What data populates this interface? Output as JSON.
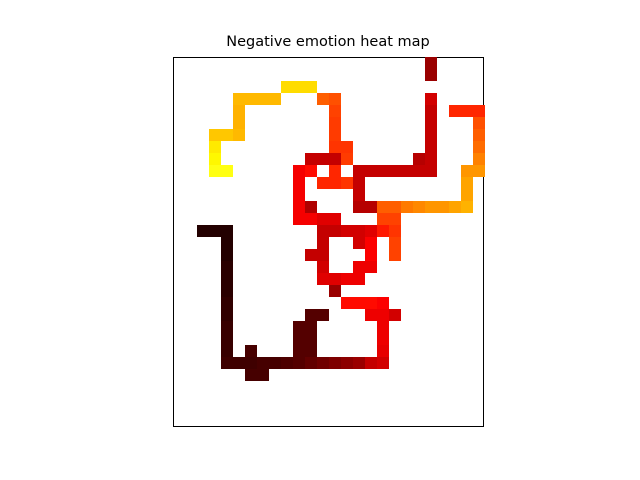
{
  "chart_data": {
    "type": "heatmap",
    "title": "Negative emotion heat map",
    "xlabel": "",
    "ylabel": "",
    "axes_ticks": "none",
    "grid": false,
    "background": "#ffffff",
    "colormap": "hot",
    "cells_note": "cells listed as [column, row, colormap value 0-1]; row 0 is top",
    "cells": [
      [
        20,
        0,
        0.22
      ],
      [
        20,
        1,
        0.22
      ],
      [
        8,
        2,
        0.68
      ],
      [
        9,
        2,
        0.68
      ],
      [
        10,
        2,
        0.68
      ],
      [
        4,
        3,
        0.63
      ],
      [
        5,
        3,
        0.63
      ],
      [
        6,
        3,
        0.63
      ],
      [
        7,
        3,
        0.63
      ],
      [
        11,
        3,
        0.5
      ],
      [
        12,
        3,
        0.48
      ],
      [
        20,
        3,
        0.3
      ],
      [
        4,
        4,
        0.62
      ],
      [
        12,
        4,
        0.46
      ],
      [
        20,
        4,
        0.28
      ],
      [
        22,
        4,
        0.42
      ],
      [
        23,
        4,
        0.42
      ],
      [
        24,
        4,
        0.42
      ],
      [
        4,
        5,
        0.62
      ],
      [
        12,
        5,
        0.45
      ],
      [
        20,
        5,
        0.28
      ],
      [
        24,
        5,
        0.48
      ],
      [
        2,
        6,
        0.65
      ],
      [
        3,
        6,
        0.65
      ],
      [
        4,
        6,
        0.63
      ],
      [
        12,
        6,
        0.45
      ],
      [
        20,
        6,
        0.28
      ],
      [
        24,
        6,
        0.5
      ],
      [
        2,
        7,
        0.7
      ],
      [
        12,
        7,
        0.44
      ],
      [
        13,
        7,
        0.44
      ],
      [
        20,
        7,
        0.28
      ],
      [
        24,
        7,
        0.52
      ],
      [
        2,
        8,
        0.72
      ],
      [
        10,
        8,
        0.28
      ],
      [
        11,
        8,
        0.28
      ],
      [
        12,
        8,
        0.28
      ],
      [
        13,
        8,
        0.45
      ],
      [
        19,
        8,
        0.26
      ],
      [
        20,
        8,
        0.28
      ],
      [
        24,
        8,
        0.55
      ],
      [
        2,
        9,
        0.75
      ],
      [
        3,
        9,
        0.75
      ],
      [
        9,
        9,
        0.35
      ],
      [
        10,
        9,
        0.38
      ],
      [
        12,
        9,
        0.42
      ],
      [
        14,
        9,
        0.28
      ],
      [
        15,
        9,
        0.28
      ],
      [
        16,
        9,
        0.28
      ],
      [
        17,
        9,
        0.28
      ],
      [
        18,
        9,
        0.28
      ],
      [
        19,
        9,
        0.28
      ],
      [
        20,
        9,
        0.28
      ],
      [
        23,
        9,
        0.58
      ],
      [
        24,
        9,
        0.58
      ],
      [
        9,
        10,
        0.35
      ],
      [
        11,
        10,
        0.42
      ],
      [
        12,
        10,
        0.42
      ],
      [
        13,
        10,
        0.44
      ],
      [
        14,
        10,
        0.28
      ],
      [
        23,
        10,
        0.6
      ],
      [
        9,
        11,
        0.35
      ],
      [
        14,
        11,
        0.28
      ],
      [
        23,
        11,
        0.6
      ],
      [
        9,
        12,
        0.35
      ],
      [
        10,
        12,
        0.25
      ],
      [
        14,
        12,
        0.26
      ],
      [
        15,
        12,
        0.26
      ],
      [
        16,
        12,
        0.5
      ],
      [
        17,
        12,
        0.5
      ],
      [
        18,
        12,
        0.54
      ],
      [
        19,
        12,
        0.56
      ],
      [
        20,
        12,
        0.58
      ],
      [
        21,
        12,
        0.58
      ],
      [
        22,
        12,
        0.6
      ],
      [
        23,
        12,
        0.62
      ],
      [
        9,
        13,
        0.35
      ],
      [
        10,
        13,
        0.35
      ],
      [
        11,
        13,
        0.32
      ],
      [
        12,
        13,
        0.32
      ],
      [
        16,
        13,
        0.46
      ],
      [
        17,
        13,
        0.46
      ],
      [
        1,
        14,
        0.05
      ],
      [
        2,
        14,
        0.05
      ],
      [
        3,
        14,
        0.05
      ],
      [
        11,
        14,
        0.28
      ],
      [
        12,
        14,
        0.28
      ],
      [
        13,
        14,
        0.3
      ],
      [
        14,
        14,
        0.3
      ],
      [
        15,
        14,
        0.32
      ],
      [
        16,
        14,
        0.4
      ],
      [
        17,
        14,
        0.44
      ],
      [
        3,
        15,
        0.05
      ],
      [
        11,
        15,
        0.28
      ],
      [
        14,
        15,
        0.3
      ],
      [
        15,
        15,
        0.36
      ],
      [
        17,
        15,
        0.46
      ],
      [
        3,
        16,
        0.05
      ],
      [
        10,
        16,
        0.28
      ],
      [
        11,
        16,
        0.28
      ],
      [
        15,
        16,
        0.36
      ],
      [
        17,
        16,
        0.46
      ],
      [
        3,
        17,
        0.06
      ],
      [
        11,
        17,
        0.3
      ],
      [
        14,
        17,
        0.34
      ],
      [
        15,
        17,
        0.34
      ],
      [
        3,
        18,
        0.06
      ],
      [
        11,
        18,
        0.32
      ],
      [
        12,
        18,
        0.32
      ],
      [
        13,
        18,
        0.34
      ],
      [
        14,
        18,
        0.34
      ],
      [
        3,
        19,
        0.06
      ],
      [
        12,
        19,
        0.22
      ],
      [
        3,
        20,
        0.07
      ],
      [
        13,
        20,
        0.38
      ],
      [
        14,
        20,
        0.38
      ],
      [
        15,
        20,
        0.38
      ],
      [
        16,
        20,
        0.36
      ],
      [
        3,
        21,
        0.07
      ],
      [
        10,
        21,
        0.12
      ],
      [
        11,
        21,
        0.12
      ],
      [
        15,
        21,
        0.34
      ],
      [
        16,
        21,
        0.34
      ],
      [
        17,
        21,
        0.3
      ],
      [
        3,
        22,
        0.08
      ],
      [
        9,
        22,
        0.12
      ],
      [
        10,
        22,
        0.12
      ],
      [
        16,
        22,
        0.34
      ],
      [
        3,
        23,
        0.08
      ],
      [
        9,
        23,
        0.12
      ],
      [
        10,
        23,
        0.12
      ],
      [
        16,
        23,
        0.34
      ],
      [
        3,
        24,
        0.08
      ],
      [
        5,
        24,
        0.1
      ],
      [
        9,
        24,
        0.12
      ],
      [
        10,
        24,
        0.12
      ],
      [
        16,
        24,
        0.33
      ],
      [
        3,
        25,
        0.09
      ],
      [
        4,
        25,
        0.09
      ],
      [
        5,
        25,
        0.09
      ],
      [
        6,
        25,
        0.1
      ],
      [
        7,
        25,
        0.1
      ],
      [
        8,
        25,
        0.11
      ],
      [
        9,
        25,
        0.12
      ],
      [
        10,
        25,
        0.14
      ],
      [
        11,
        25,
        0.16
      ],
      [
        12,
        25,
        0.18
      ],
      [
        13,
        25,
        0.2
      ],
      [
        14,
        25,
        0.22
      ],
      [
        15,
        25,
        0.28
      ],
      [
        16,
        25,
        0.3
      ],
      [
        5,
        26,
        0.1
      ],
      [
        6,
        26,
        0.1
      ]
    ]
  }
}
